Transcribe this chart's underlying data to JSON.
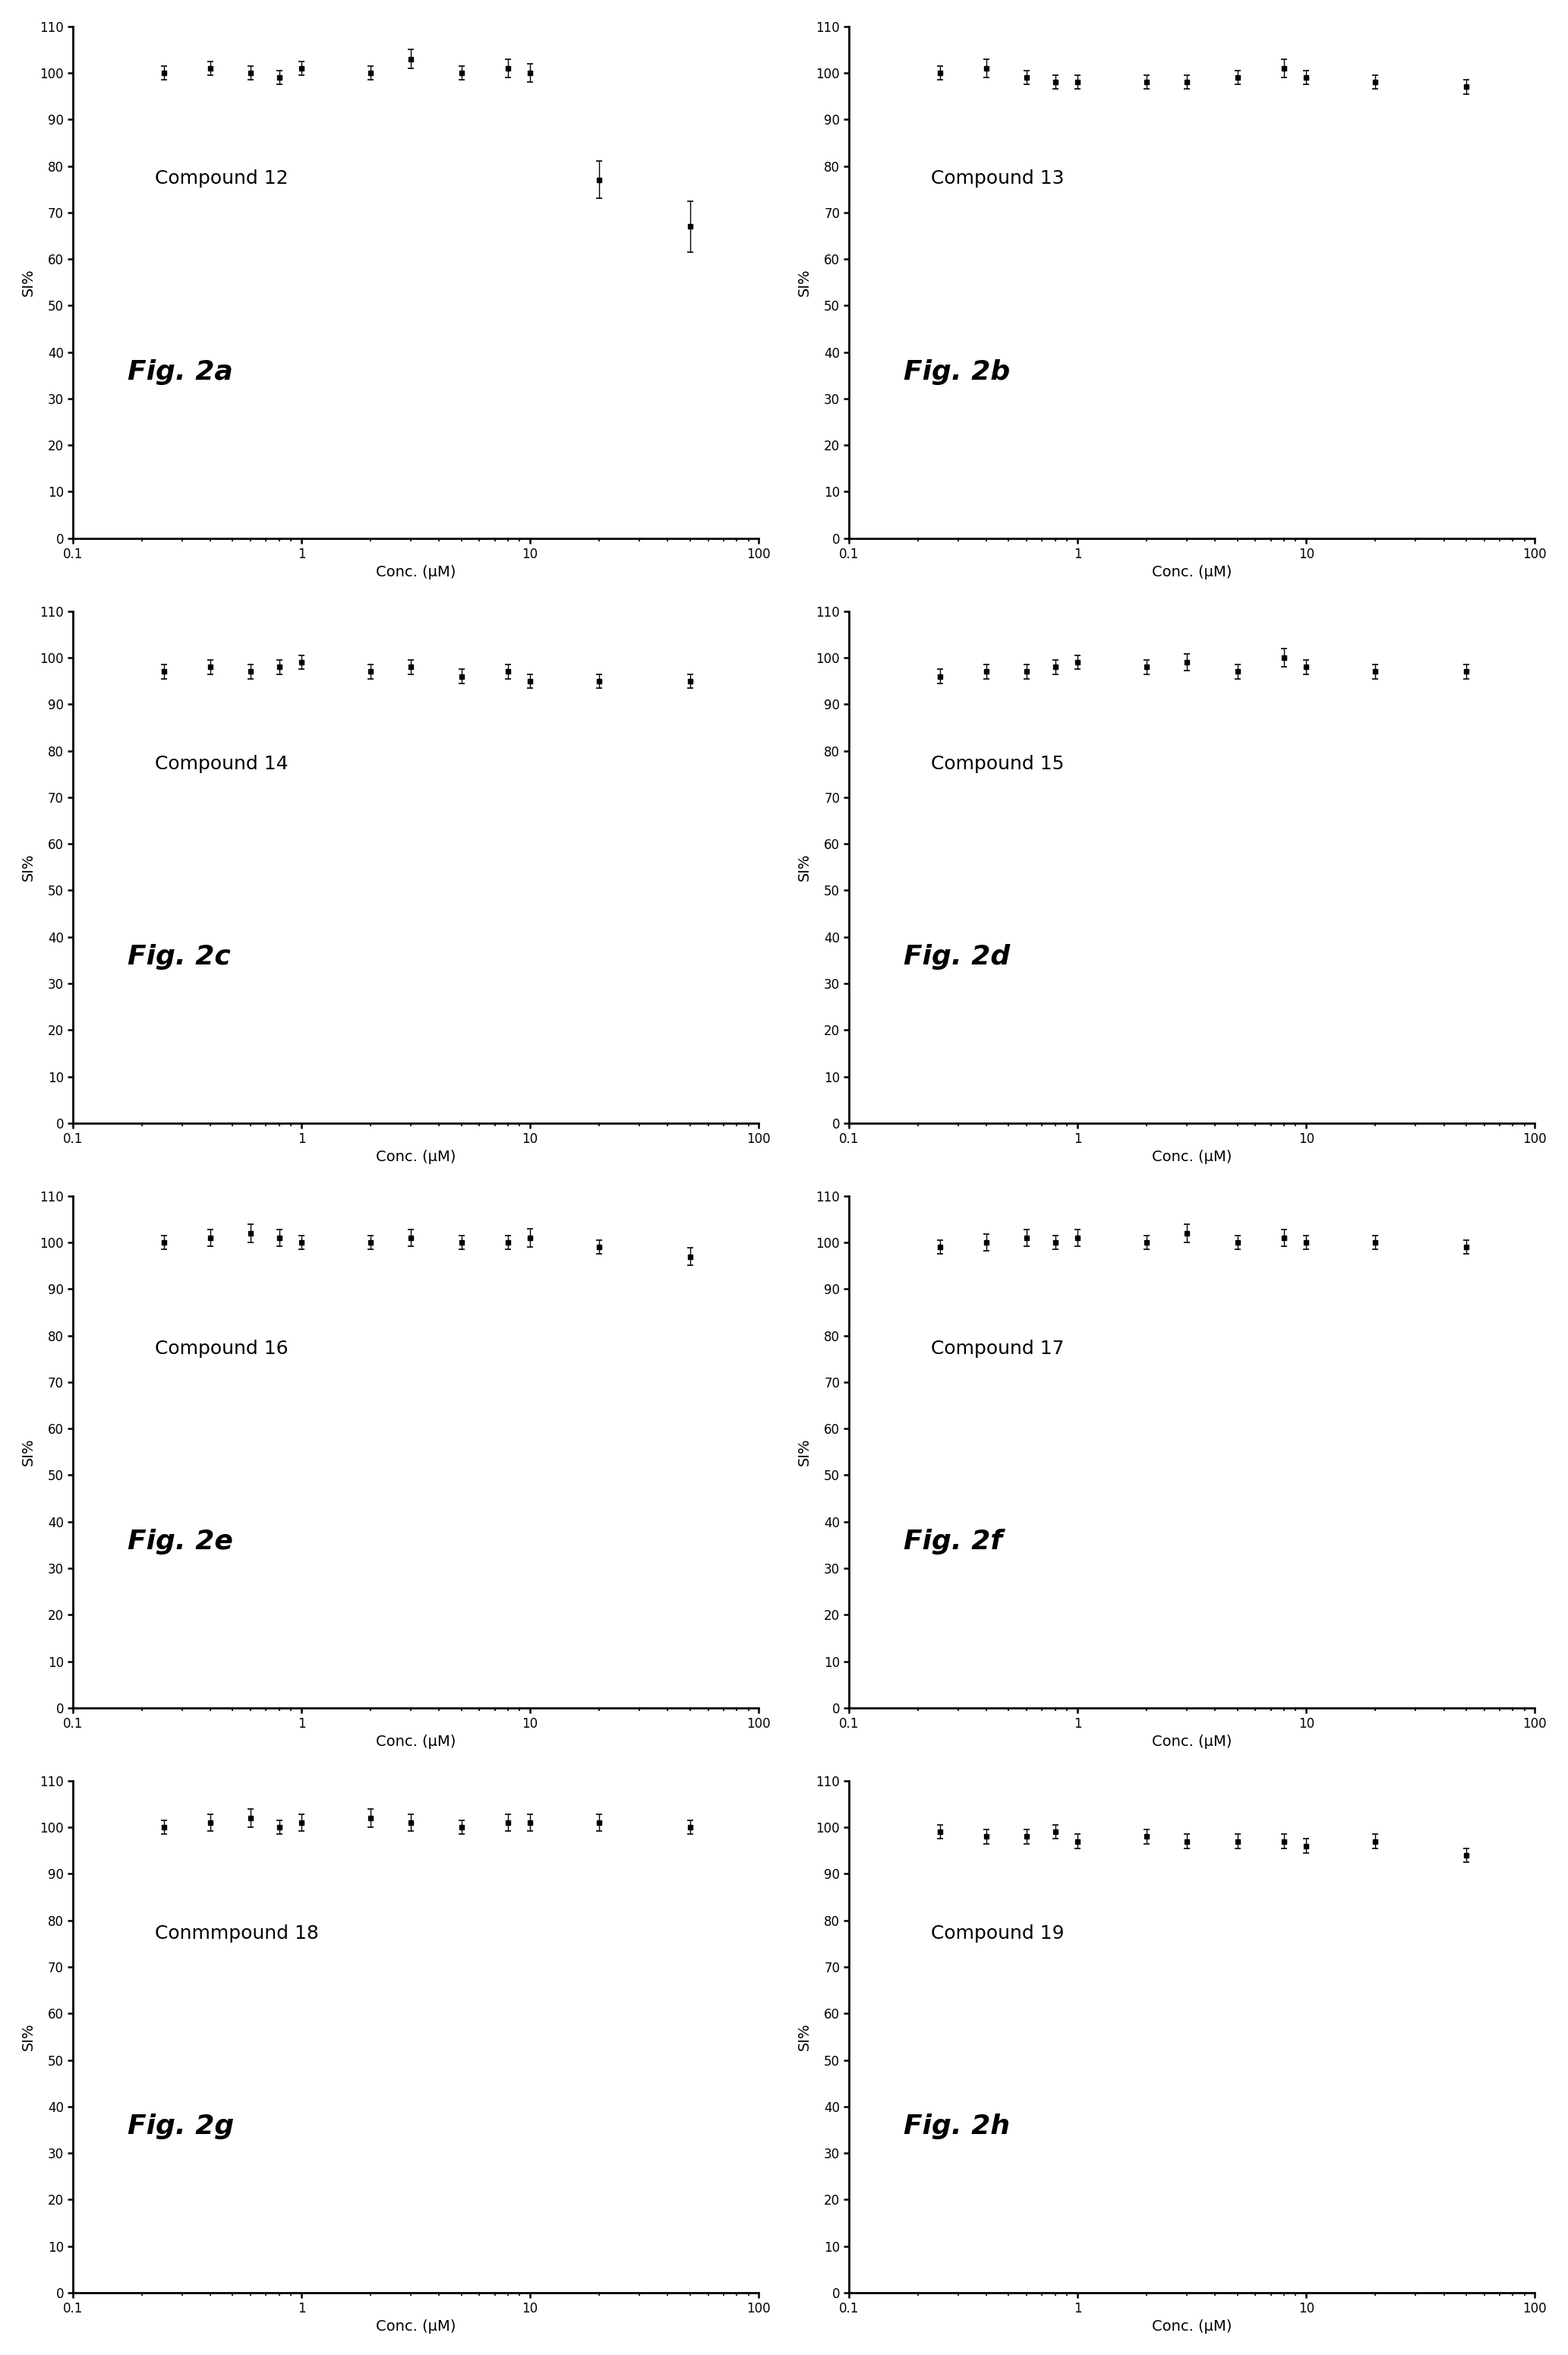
{
  "panels": [
    {
      "label": "Fig. 2a",
      "compound": "Compound 12",
      "x": [
        0.25,
        0.4,
        0.6,
        0.8,
        1.0,
        2.0,
        3.0,
        5.0,
        8.0,
        10.0,
        20.0,
        50.0
      ],
      "y": [
        100,
        101,
        100,
        99,
        101,
        100,
        103,
        100,
        101,
        100,
        77,
        67
      ],
      "yerr": [
        1.5,
        1.5,
        1.5,
        1.5,
        1.5,
        1.5,
        2.0,
        1.5,
        2.0,
        2.0,
        4.0,
        5.5
      ],
      "xlim": [
        0.1,
        100
      ],
      "ylim": [
        0,
        110
      ],
      "yticks": [
        0,
        10,
        20,
        30,
        40,
        50,
        60,
        70,
        80,
        90,
        100,
        110
      ]
    },
    {
      "label": "Fig. 2b",
      "compound": "Compound 13",
      "x": [
        0.25,
        0.4,
        0.6,
        0.8,
        1.0,
        2.0,
        3.0,
        5.0,
        8.0,
        10.0,
        20.0,
        50.0
      ],
      "y": [
        100,
        101,
        99,
        98,
        98,
        98,
        98,
        99,
        101,
        99,
        98,
        97
      ],
      "yerr": [
        1.5,
        2.0,
        1.5,
        1.5,
        1.5,
        1.5,
        1.5,
        1.5,
        2.0,
        1.5,
        1.5,
        1.5
      ],
      "xlim": [
        0.1,
        100
      ],
      "ylim": [
        0,
        110
      ],
      "yticks": [
        0,
        10,
        20,
        30,
        40,
        50,
        60,
        70,
        80,
        90,
        100,
        110
      ]
    },
    {
      "label": "Fig. 2c",
      "compound": "Compound 14",
      "x": [
        0.25,
        0.4,
        0.6,
        0.8,
        1.0,
        2.0,
        3.0,
        5.0,
        8.0,
        10.0,
        20.0,
        50.0
      ],
      "y": [
        97,
        98,
        97,
        98,
        99,
        97,
        98,
        96,
        97,
        95,
        95,
        95
      ],
      "yerr": [
        1.5,
        1.5,
        1.5,
        1.5,
        1.5,
        1.5,
        1.5,
        1.5,
        1.5,
        1.5,
        1.5,
        1.5
      ],
      "xlim": [
        0.1,
        100
      ],
      "ylim": [
        0,
        110
      ],
      "yticks": [
        0,
        10,
        20,
        30,
        40,
        50,
        60,
        70,
        80,
        90,
        100,
        110
      ]
    },
    {
      "label": "Fig. 2d",
      "compound": "Compound 15",
      "x": [
        0.25,
        0.4,
        0.6,
        0.8,
        1.0,
        2.0,
        3.0,
        5.0,
        8.0,
        10.0,
        20.0,
        50.0
      ],
      "y": [
        96,
        97,
        97,
        98,
        99,
        98,
        99,
        97,
        100,
        98,
        97,
        97
      ],
      "yerr": [
        1.5,
        1.5,
        1.5,
        1.5,
        1.5,
        1.5,
        1.8,
        1.5,
        2.0,
        1.5,
        1.5,
        1.5
      ],
      "xlim": [
        0.1,
        100
      ],
      "ylim": [
        0,
        110
      ],
      "yticks": [
        0,
        10,
        20,
        30,
        40,
        50,
        60,
        70,
        80,
        90,
        100,
        110
      ]
    },
    {
      "label": "Fig. 2e",
      "compound": "Compound 16",
      "x": [
        0.25,
        0.4,
        0.6,
        0.8,
        1.0,
        2.0,
        3.0,
        5.0,
        8.0,
        10.0,
        20.0,
        50.0
      ],
      "y": [
        100,
        101,
        102,
        101,
        100,
        100,
        101,
        100,
        100,
        101,
        99,
        97
      ],
      "yerr": [
        1.5,
        1.8,
        2.0,
        1.8,
        1.5,
        1.5,
        1.8,
        1.5,
        1.5,
        2.0,
        1.5,
        1.8
      ],
      "xlim": [
        0.1,
        100
      ],
      "ylim": [
        0,
        110
      ],
      "yticks": [
        0,
        10,
        20,
        30,
        40,
        50,
        60,
        70,
        80,
        90,
        100,
        110
      ]
    },
    {
      "label": "Fig. 2f",
      "compound": "Compound 17",
      "x": [
        0.25,
        0.4,
        0.6,
        0.8,
        1.0,
        2.0,
        3.0,
        5.0,
        8.0,
        10.0,
        20.0,
        50.0
      ],
      "y": [
        99,
        100,
        101,
        100,
        101,
        100,
        102,
        100,
        101,
        100,
        100,
        99
      ],
      "yerr": [
        1.5,
        1.8,
        1.8,
        1.5,
        1.8,
        1.5,
        2.0,
        1.5,
        1.8,
        1.5,
        1.5,
        1.5
      ],
      "xlim": [
        0.1,
        100
      ],
      "ylim": [
        0,
        110
      ],
      "yticks": [
        0,
        10,
        20,
        30,
        40,
        50,
        60,
        70,
        80,
        90,
        100,
        110
      ]
    },
    {
      "label": "Fig. 2g",
      "compound": "Conmmpound 18",
      "x": [
        0.25,
        0.4,
        0.6,
        0.8,
        1.0,
        2.0,
        3.0,
        5.0,
        8.0,
        10.0,
        20.0,
        50.0
      ],
      "y": [
        100,
        101,
        102,
        100,
        101,
        102,
        101,
        100,
        101,
        101,
        101,
        100
      ],
      "yerr": [
        1.5,
        1.8,
        2.0,
        1.5,
        1.8,
        2.0,
        1.8,
        1.5,
        1.8,
        1.8,
        1.8,
        1.5
      ],
      "xlim": [
        0.1,
        100
      ],
      "ylim": [
        0,
        110
      ],
      "yticks": [
        0,
        10,
        20,
        30,
        40,
        50,
        60,
        70,
        80,
        90,
        100,
        110
      ]
    },
    {
      "label": "Fig. 2h",
      "compound": "Compound 19",
      "x": [
        0.25,
        0.4,
        0.6,
        0.8,
        1.0,
        2.0,
        3.0,
        5.0,
        8.0,
        10.0,
        20.0,
        50.0
      ],
      "y": [
        99,
        98,
        98,
        99,
        97,
        98,
        97,
        97,
        97,
        96,
        97,
        94
      ],
      "yerr": [
        1.5,
        1.5,
        1.5,
        1.5,
        1.5,
        1.5,
        1.5,
        1.5,
        1.5,
        1.5,
        1.5,
        1.5
      ],
      "xlim": [
        0.1,
        100
      ],
      "ylim": [
        0,
        110
      ],
      "yticks": [
        0,
        10,
        20,
        30,
        40,
        50,
        60,
        70,
        80,
        90,
        100,
        110
      ]
    }
  ],
  "xlabel": "Conc. (μM)",
  "ylabel": "SI%",
  "background_color": "#ffffff",
  "line_color": "#000000",
  "marker": "s",
  "markersize": 4,
  "linewidth": 1.5,
  "capsize": 3,
  "figure_label_fontsize": 26,
  "compound_label_fontsize": 18,
  "axis_label_fontsize": 14,
  "tick_fontsize": 12,
  "nrows": 4,
  "ncols": 2
}
